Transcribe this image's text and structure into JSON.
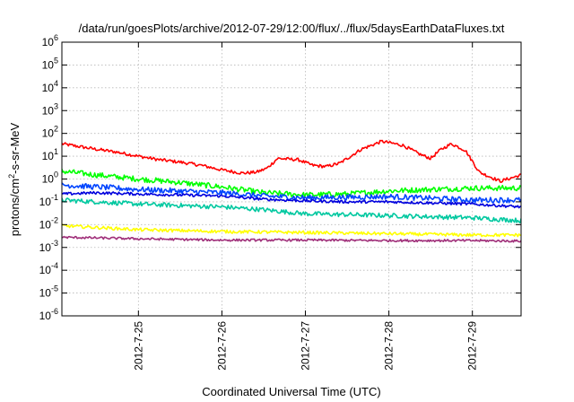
{
  "chart_data": {
    "type": "line",
    "title": "/data/run/goesPlots/archive/2012-07-29/12:00/flux/../flux/5daysEarthDataFluxes.txt",
    "xlabel": "Coordinated Universal Time (UTC)",
    "ylabel_parts": {
      "pre": "protons/cm",
      "sup": "2",
      "post": "-s-sr-MeV"
    },
    "y_scale": "log",
    "ylim": [
      1e-06,
      1000000.0
    ],
    "y_ticks": [
      {
        "value": 1e-06,
        "base": "10",
        "exp": "-6"
      },
      {
        "value": 1e-05,
        "base": "10",
        "exp": "-5"
      },
      {
        "value": 0.0001,
        "base": "10",
        "exp": "-4"
      },
      {
        "value": 0.001,
        "base": "10",
        "exp": "-3"
      },
      {
        "value": 0.01,
        "base": "10",
        "exp": "-2"
      },
      {
        "value": 0.1,
        "base": "10",
        "exp": "-1"
      },
      {
        "value": 1,
        "base": "10",
        "exp": "0"
      },
      {
        "value": 10.0,
        "base": "10",
        "exp": "1"
      },
      {
        "value": 100.0,
        "base": "10",
        "exp": "2"
      },
      {
        "value": 1000.0,
        "base": "10",
        "exp": "3"
      },
      {
        "value": 10000.0,
        "base": "10",
        "exp": "4"
      },
      {
        "value": 100000.0,
        "base": "10",
        "exp": "5"
      },
      {
        "value": 1000000.0,
        "base": "10",
        "exp": "6"
      }
    ],
    "xlim": [
      "2012-07-24 02:00",
      "2012-07-29 14:00"
    ],
    "x_ticks": [
      {
        "value": "2012-07-25",
        "label": "2012-7-25"
      },
      {
        "value": "2012-07-26",
        "label": "2012-7-26"
      },
      {
        "value": "2012-07-27",
        "label": "2012-7-27"
      },
      {
        "value": "2012-07-28",
        "label": "2012-7-28"
      },
      {
        "value": "2012-07-29",
        "label": "2012-7-29"
      }
    ],
    "grid": true,
    "legend": "none",
    "series": [
      {
        "color": "#ff0000",
        "noise": 0.07,
        "points": [
          [
            "2012-07-24 02:00",
            35
          ],
          [
            "2012-07-24 08:00",
            25
          ],
          [
            "2012-07-24 12:00",
            20
          ],
          [
            "2012-07-24 18:00",
            15
          ],
          [
            "2012-07-25 00:00",
            10
          ],
          [
            "2012-07-25 06:00",
            7
          ],
          [
            "2012-07-25 12:00",
            5.5
          ],
          [
            "2012-07-25 18:00",
            4
          ],
          [
            "2012-07-26 00:00",
            2.5
          ],
          [
            "2012-07-26 06:00",
            1.8
          ],
          [
            "2012-07-26 10:00",
            2
          ],
          [
            "2012-07-26 13:00",
            3
          ],
          [
            "2012-07-26 16:00",
            8
          ],
          [
            "2012-07-26 22:00",
            7
          ],
          [
            "2012-07-27 02:00",
            4
          ],
          [
            "2012-07-27 06:00",
            3.5
          ],
          [
            "2012-07-27 10:00",
            5
          ],
          [
            "2012-07-27 16:00",
            20
          ],
          [
            "2012-07-27 22:00",
            45
          ],
          [
            "2012-07-28 04:00",
            30
          ],
          [
            "2012-07-28 09:00",
            12
          ],
          [
            "2012-07-28 12:00",
            8
          ],
          [
            "2012-07-28 15:00",
            20
          ],
          [
            "2012-07-28 18:00",
            35
          ],
          [
            "2012-07-28 22:00",
            18
          ],
          [
            "2012-07-29 02:00",
            2
          ],
          [
            "2012-07-29 08:00",
            0.8
          ],
          [
            "2012-07-29 14:00",
            1.5
          ]
        ]
      },
      {
        "color": "#00ff00",
        "noise": 0.12,
        "points": [
          [
            "2012-07-24 02:00",
            2.2
          ],
          [
            "2012-07-24 12:00",
            1.5
          ],
          [
            "2012-07-25 00:00",
            1.0
          ],
          [
            "2012-07-25 12:00",
            0.7
          ],
          [
            "2012-07-26 00:00",
            0.45
          ],
          [
            "2012-07-26 12:00",
            0.25
          ],
          [
            "2012-07-27 00:00",
            0.2
          ],
          [
            "2012-07-27 12:00",
            0.22
          ],
          [
            "2012-07-28 00:00",
            0.3
          ],
          [
            "2012-07-28 12:00",
            0.35
          ],
          [
            "2012-07-29 00:00",
            0.4
          ],
          [
            "2012-07-29 14:00",
            0.4
          ]
        ]
      },
      {
        "color": "#00c8a0",
        "noise": 0.1,
        "points": [
          [
            "2012-07-24 02:00",
            0.12
          ],
          [
            "2012-07-25 00:00",
            0.08
          ],
          [
            "2012-07-26 00:00",
            0.06
          ],
          [
            "2012-07-26 12:00",
            0.045
          ],
          [
            "2012-07-27 00:00",
            0.03
          ],
          [
            "2012-07-28 00:00",
            0.025
          ],
          [
            "2012-07-29 00:00",
            0.02
          ],
          [
            "2012-07-29 14:00",
            0.015
          ]
        ]
      },
      {
        "color": "#0044ff",
        "noise": 0.12,
        "points": [
          [
            "2012-07-24 02:00",
            0.55
          ],
          [
            "2012-07-24 12:00",
            0.45
          ],
          [
            "2012-07-25 00:00",
            0.35
          ],
          [
            "2012-07-26 00:00",
            0.25
          ],
          [
            "2012-07-26 12:00",
            0.18
          ],
          [
            "2012-07-27 00:00",
            0.15
          ],
          [
            "2012-07-28 00:00",
            0.17
          ],
          [
            "2012-07-29 00:00",
            0.12
          ],
          [
            "2012-07-29 14:00",
            0.12
          ]
        ]
      },
      {
        "color": "#0000dd",
        "noise": 0.06,
        "points": [
          [
            "2012-07-24 02:00",
            0.22
          ],
          [
            "2012-07-24 12:00",
            0.25
          ],
          [
            "2012-07-25 00:00",
            0.22
          ],
          [
            "2012-07-25 12:00",
            0.2
          ],
          [
            "2012-07-26 00:00",
            0.18
          ],
          [
            "2012-07-26 12:00",
            0.13
          ],
          [
            "2012-07-27 00:00",
            0.11
          ],
          [
            "2012-07-27 12:00",
            0.1
          ],
          [
            "2012-07-28 00:00",
            0.1
          ],
          [
            "2012-07-29 00:00",
            0.08
          ],
          [
            "2012-07-29 14:00",
            0.06
          ]
        ]
      },
      {
        "color": "#ffff00",
        "noise": 0.07,
        "points": [
          [
            "2012-07-24 02:00",
            0.009
          ],
          [
            "2012-07-25 00:00",
            0.006
          ],
          [
            "2012-07-26 00:00",
            0.005
          ],
          [
            "2012-07-27 00:00",
            0.0045
          ],
          [
            "2012-07-28 00:00",
            0.004
          ],
          [
            "2012-07-29 00:00",
            0.0035
          ],
          [
            "2012-07-29 14:00",
            0.0035
          ]
        ]
      },
      {
        "color": "#a0307a",
        "noise": 0.05,
        "points": [
          [
            "2012-07-24 02:00",
            0.0028
          ],
          [
            "2012-07-25 00:00",
            0.0024
          ],
          [
            "2012-07-26 00:00",
            0.0021
          ],
          [
            "2012-07-27 00:00",
            0.0021
          ],
          [
            "2012-07-28 00:00",
            0.002
          ],
          [
            "2012-07-29 00:00",
            0.002
          ],
          [
            "2012-07-29 14:00",
            0.0019
          ]
        ]
      }
    ]
  }
}
